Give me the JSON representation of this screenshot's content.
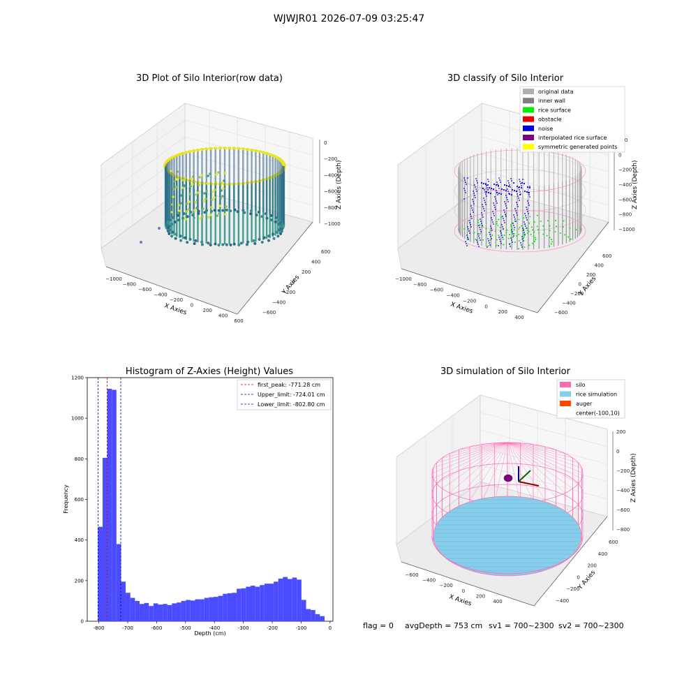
{
  "figure": {
    "suptitle": "WJWJR01 2026-07-09 03:25:47",
    "footer": {
      "flag": "flag = 0",
      "avg_depth": "avgDepth = 753 cm",
      "sv1": "sv1 = 700~2300",
      "sv2": "sv2 = 700~2300"
    }
  },
  "colors": {
    "raw_high": "#e8e420",
    "raw_mid": "#3a9a8c",
    "raw_low": "#2f5f8a",
    "original_data": "#b0b0b0",
    "inner_wall": "#808080",
    "rice_surface": "#00ee00",
    "obstacle": "#ee0000",
    "noise": "#0000dd",
    "interpolated_rice_surface": "#800080",
    "symmetric_generated_points": "#ffff00",
    "silo": "#ff69b4",
    "rice_simulation": "#87ceeb",
    "auger": "#ff4500",
    "hist_bar": "#4b4bff",
    "first_peak": "#dd0000",
    "limit_line": "#0000aa"
  },
  "chart_data": [
    {
      "type": "scatter",
      "title": "3D Plot of Silo Interior(row data)",
      "xlabel": "X Axies",
      "ylabel": "Y Axies",
      "zlabel": "Z Axies (Depth)",
      "x_ticks": [
        "−1000",
        "−800",
        "−600",
        "−400",
        "−200",
        "0",
        "200",
        "400",
        "600"
      ],
      "y_ticks": [
        "−600",
        "−400",
        "−200",
        "0",
        "200",
        "400",
        "600"
      ],
      "z_ticks": [
        "0",
        "−200",
        "−400",
        "−600",
        "−800",
        "−1000"
      ],
      "xlim": [
        -1050,
        620
      ],
      "ylim": [
        -650,
        650
      ],
      "zlim": [
        -1100,
        0
      ]
    },
    {
      "type": "scatter",
      "title": "3D classify of Silo Interior",
      "xlabel": "X Axies",
      "ylabel": "Y Axies",
      "zlabel": "Z Axies (Depth)",
      "x_ticks": [
        "−1000",
        "−800",
        "−600",
        "−400",
        "−200",
        "0",
        "200",
        "400"
      ],
      "y_ticks": [
        "−600",
        "−400",
        "−200",
        "0",
        "200",
        "400",
        "600"
      ],
      "z_ticks": [
        "200",
        "0",
        "−200",
        "−400",
        "−600",
        "−800",
        "−1000"
      ],
      "legend": [
        "original data",
        "inner wall",
        "rice surface",
        "obstacle",
        "noise",
        "interpolated rice surface",
        "symmetric generated points"
      ],
      "legend_position": "top-right"
    },
    {
      "type": "bar",
      "title": "Histogram of Z-Axies (Height) Values",
      "xlabel": "Depth (cm)",
      "ylabel": "Frequency",
      "xlim": [
        -840,
        10
      ],
      "ylim": [
        0,
        1200
      ],
      "x_ticks": [
        -800,
        -700,
        -600,
        -500,
        -400,
        -300,
        -200,
        -100,
        0
      ],
      "y_ticks": [
        0,
        200,
        400,
        600,
        800,
        1000,
        1200
      ],
      "bin_width": 16,
      "bin_starts": [
        -803,
        -787,
        -771,
        -755,
        -739,
        -723,
        -707,
        -691,
        -675,
        -659,
        -643,
        -627,
        -611,
        -595,
        -579,
        -563,
        -547,
        -531,
        -515,
        -499,
        -483,
        -467,
        -451,
        -435,
        -419,
        -403,
        -387,
        -371,
        -355,
        -339,
        -323,
        -307,
        -291,
        -275,
        -259,
        -243,
        -227,
        -211,
        -195,
        -179,
        -163,
        -147,
        -131,
        -115,
        -99,
        -83,
        -67,
        -51,
        -35
      ],
      "values": [
        465,
        805,
        1145,
        1140,
        380,
        195,
        140,
        115,
        100,
        85,
        90,
        75,
        88,
        82,
        85,
        80,
        88,
        92,
        100,
        105,
        102,
        108,
        108,
        115,
        118,
        120,
        125,
        135,
        138,
        140,
        160,
        162,
        170,
        175,
        170,
        178,
        185,
        185,
        195,
        210,
        218,
        208,
        215,
        205,
        105,
        60,
        55,
        35,
        25
      ],
      "vlines": [
        {
          "label": "first_peak: -771.28 cm",
          "x": -771.28,
          "color": "#dd0000"
        },
        {
          "label": "Upper_limit: -724.01 cm",
          "x": -724.01,
          "color": "#0000aa"
        },
        {
          "label": "Lower_limit: -802.80 cm",
          "x": -802.8,
          "color": "#0000aa"
        }
      ],
      "legend_position": "top-right"
    },
    {
      "type": "scatter",
      "title": "3D simulation of Silo Interior",
      "xlabel": "X Axies",
      "ylabel": "Y Axies",
      "zlabel": "Z Axies (Depth)",
      "x_ticks": [
        "−600",
        "−400",
        "−200",
        "0",
        "200",
        "400"
      ],
      "y_ticks": [
        "−400",
        "−200",
        "0",
        "200",
        "400",
        "600"
      ],
      "z_ticks": [
        "200",
        "0",
        "−200",
        "−400",
        "−600",
        "−800"
      ],
      "legend": [
        "silo",
        "rice simulation",
        "auger",
        "center(-100,10)"
      ],
      "legend_position": "top-right"
    }
  ]
}
